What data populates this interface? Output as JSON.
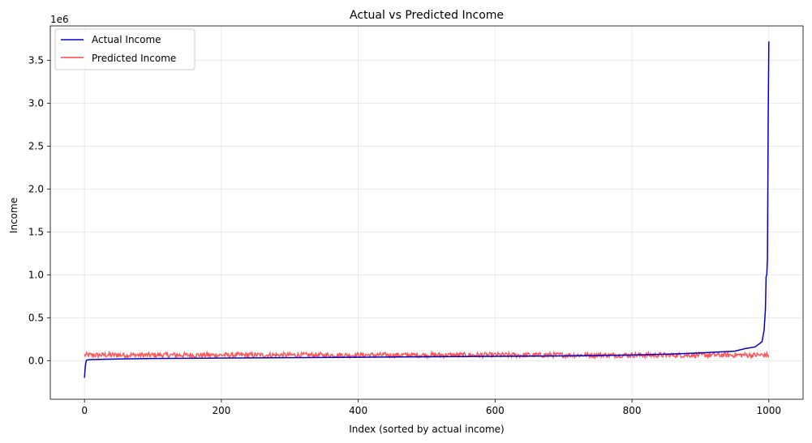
{
  "chart_data": {
    "type": "line",
    "title": "Actual vs Predicted Income",
    "xlabel": "Index (sorted by actual income)",
    "ylabel": "Income",
    "y_offset_label": "1e6",
    "xlim": [
      -50,
      1050
    ],
    "ylim": [
      -0.45,
      3.9
    ],
    "y_unit_multiplier": 1000000,
    "xticks": [
      0,
      200,
      400,
      600,
      800,
      1000
    ],
    "yticks": [
      0.0,
      0.5,
      1.0,
      1.5,
      2.0,
      2.5,
      3.0,
      3.5
    ],
    "xtick_labels": [
      "0",
      "200",
      "400",
      "600",
      "800",
      "1000"
    ],
    "ytick_labels": [
      "0.0",
      "0.5",
      "1.0",
      "1.5",
      "2.0",
      "2.5",
      "3.0",
      "3.5"
    ],
    "grid": true,
    "legend_position": "upper-left",
    "series": [
      {
        "name": "Actual Income",
        "color": "#0000cc",
        "x": [
          0,
          1,
          2,
          3,
          5,
          10,
          50,
          100,
          200,
          300,
          400,
          500,
          600,
          700,
          800,
          850,
          900,
          950,
          965,
          980,
          990,
          993,
          995,
          996,
          997,
          998,
          999,
          1000
        ],
        "y": [
          -0.2,
          -0.08,
          -0.02,
          0.005,
          0.01,
          0.012,
          0.02,
          0.025,
          0.03,
          0.035,
          0.04,
          0.045,
          0.05,
          0.055,
          0.065,
          0.075,
          0.09,
          0.11,
          0.14,
          0.16,
          0.22,
          0.35,
          0.6,
          0.98,
          1.0,
          1.2,
          2.8,
          3.72
        ]
      },
      {
        "name": "Predicted Income",
        "color": "#ff4444",
        "x_range": [
          0,
          1000
        ],
        "baseline": 0.065,
        "noise_amplitude": 0.03,
        "points": 1001
      }
    ]
  }
}
